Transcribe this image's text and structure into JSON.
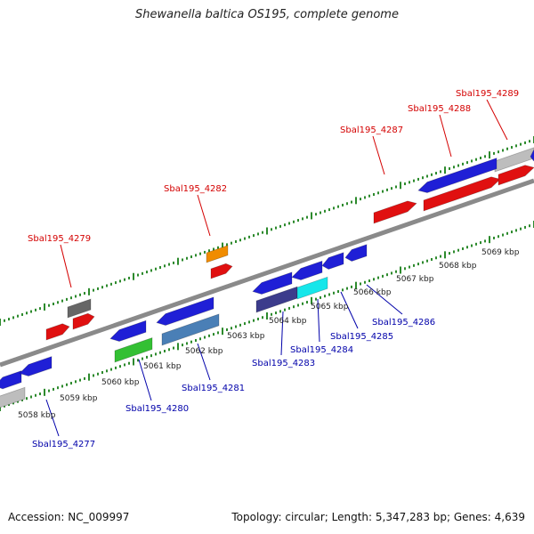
{
  "title": "Shewanella baltica OS195, complete genome",
  "footer": {
    "accession": "Accession: NC_009997",
    "topology": "Topology: circular; Length: 5,347,283 bp; Genes: 4,639"
  },
  "colors": {
    "backbone": "#8a8a8a",
    "ticks": "#2d8a2d",
    "forward_label": "#d40000",
    "reverse_label": "#0000aa",
    "blue": "#1f1fd6",
    "red": "#e01010",
    "gray_gene": "#bdbdbd",
    "dark_gray_gene": "#666666",
    "orange": "#f08c00",
    "green": "#33c033",
    "steel": "#4a7fb6",
    "navy": "#3c3c8c",
    "cyan": "#16e6ea"
  },
  "scale_labels": [
    "5058 kbp",
    "5059 kbp",
    "5060 kbp",
    "5061 kbp",
    "5062 kbp",
    "5063 kbp",
    "5064 kbp",
    "5065 kbp",
    "5066 kbp",
    "5067 kbp",
    "5068 kbp",
    "5069 kbp"
  ],
  "forward_gene_labels": [
    "Sbal195_4279",
    "Sbal195_4282",
    "Sbal195_4287",
    "Sbal195_4288",
    "Sbal195_4289"
  ],
  "reverse_gene_labels": [
    "Sbal195_4277",
    "Sbal195_4280",
    "Sbal195_4281",
    "Sbal195_4283",
    "Sbal195_4284",
    "Sbal195_4285",
    "Sbal195_4286"
  ]
}
